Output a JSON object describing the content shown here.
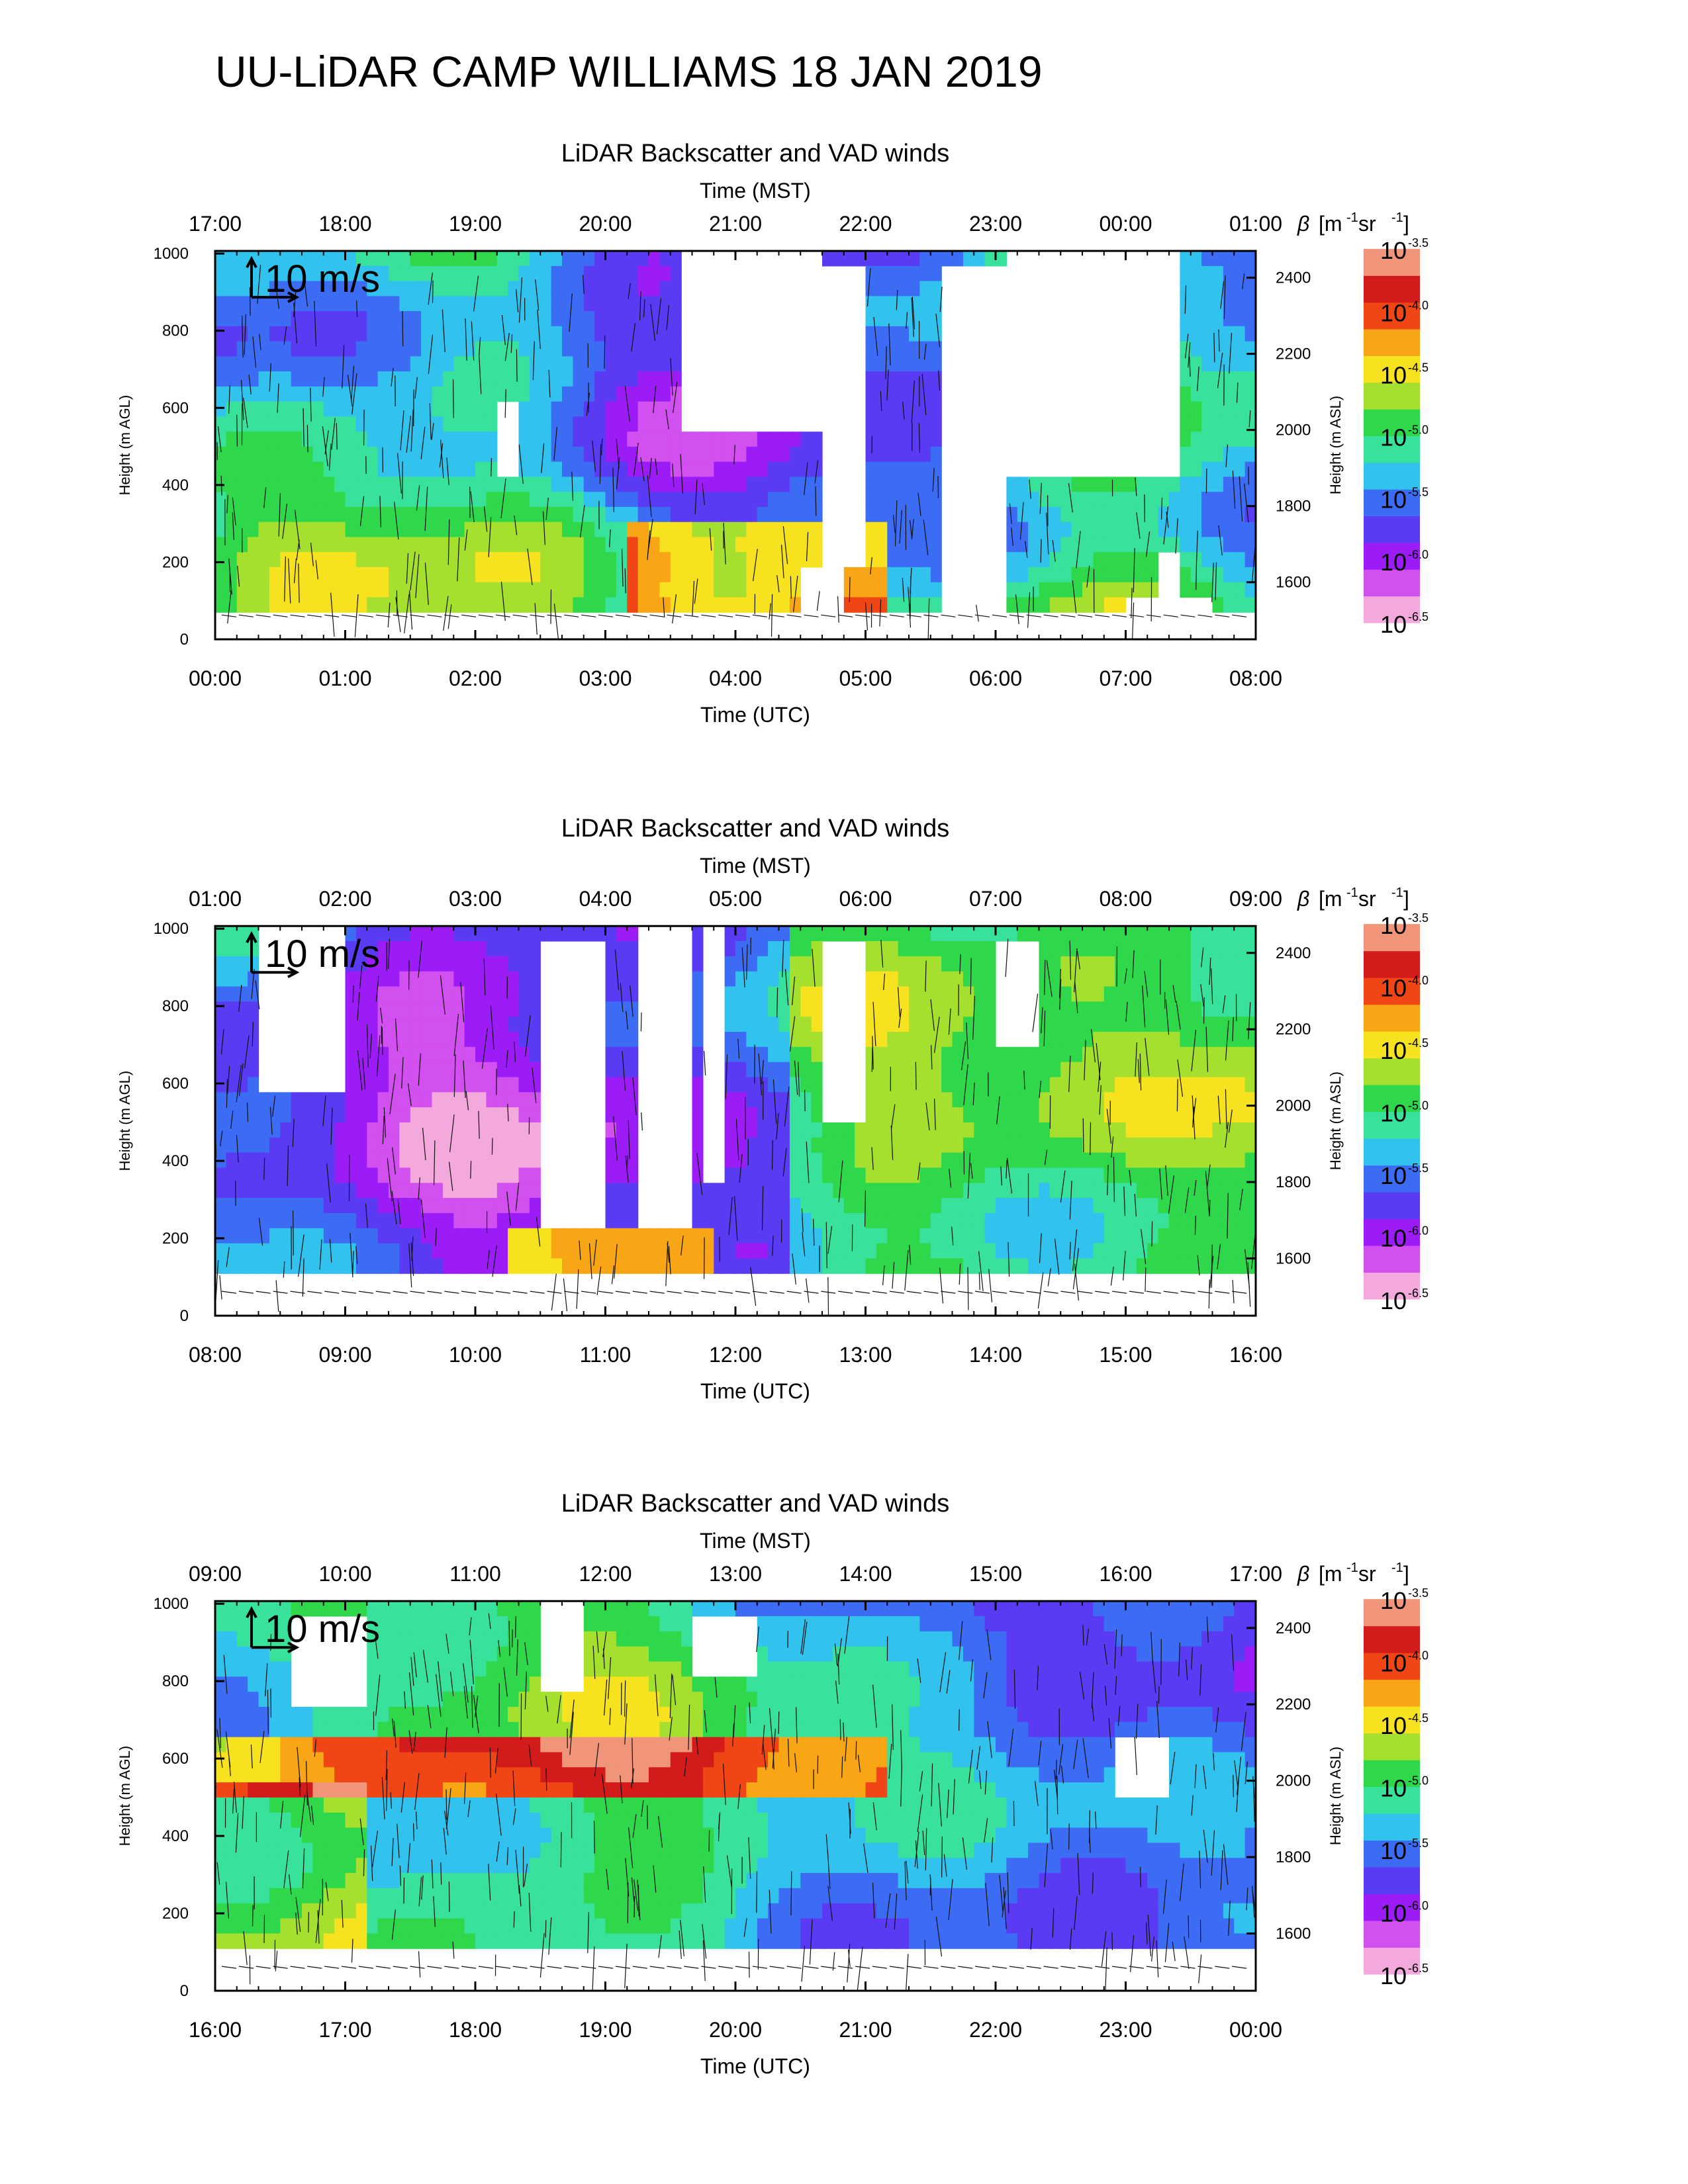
{
  "page": {
    "title": "UU-LiDAR CAMP WILLIAMS 18 JAN 2019"
  },
  "colors": {
    "palette": [
      "#f4a9dc",
      "#d24ff0",
      "#9b1cf7",
      "#5b3af4",
      "#3c6cf4",
      "#31c2ee",
      "#39e29b",
      "#2fd84a",
      "#a6e02f",
      "#f7e21f",
      "#f8a516",
      "#f04515",
      "#d31b1b",
      "#f0957a"
    ]
  },
  "colorbar": {
    "label_beta": "β",
    "label_units": "[m",
    "label_units_exp1": "-1",
    "label_units_mid": " sr",
    "label_units_exp2": "-1",
    "label_units_end": "]",
    "base": "10",
    "exponents": [
      "-3.5",
      "-4.0",
      "-4.5",
      "-5.0",
      "-5.5",
      "-6.0",
      "-6.5"
    ]
  },
  "chart_data": [
    {
      "type": "heatmap",
      "title": "LiDAR Backscatter and VAD winds",
      "top_axis_label": "Time (MST)",
      "top_ticks": [
        "17:00",
        "18:00",
        "19:00",
        "20:00",
        "21:00",
        "22:00",
        "23:00",
        "00:00",
        "01:00"
      ],
      "bottom_axis_label": "Time (UTC)",
      "bottom_ticks": [
        "00:00",
        "01:00",
        "02:00",
        "03:00",
        "04:00",
        "05:00",
        "06:00",
        "07:00",
        "08:00"
      ],
      "ylabel": "Height (m AGL)",
      "yticks": [
        "0",
        "200",
        "400",
        "600",
        "800",
        "1000"
      ],
      "ylim": [
        0,
        1000
      ],
      "ylabel_right": "Height (m ASL)",
      "yticks_right": [
        "1600",
        "1800",
        "2000",
        "2200",
        "2400"
      ],
      "ylim_right": [
        1450,
        2450
      ],
      "scale_label": "10 m/s",
      "colorbar_exponent_range": [
        -6.5,
        -3.5
      ]
    },
    {
      "type": "heatmap",
      "title": "LiDAR Backscatter and VAD winds",
      "top_axis_label": "Time (MST)",
      "top_ticks": [
        "01:00",
        "02:00",
        "03:00",
        "04:00",
        "05:00",
        "06:00",
        "07:00",
        "08:00",
        "09:00"
      ],
      "bottom_axis_label": "Time (UTC)",
      "bottom_ticks": [
        "08:00",
        "09:00",
        "10:00",
        "11:00",
        "12:00",
        "13:00",
        "14:00",
        "15:00",
        "16:00"
      ],
      "ylabel": "Height (m AGL)",
      "yticks": [
        "0",
        "200",
        "400",
        "600",
        "800",
        "1000"
      ],
      "ylim": [
        0,
        1000
      ],
      "ylabel_right": "Height (m ASL)",
      "yticks_right": [
        "1600",
        "1800",
        "2000",
        "2200",
        "2400"
      ],
      "ylim_right": [
        1450,
        2450
      ],
      "scale_label": "10 m/s",
      "colorbar_exponent_range": [
        -6.5,
        -3.5
      ]
    },
    {
      "type": "heatmap",
      "title": "LiDAR Backscatter and VAD winds",
      "top_axis_label": "Time (MST)",
      "top_ticks": [
        "09:00",
        "10:00",
        "11:00",
        "12:00",
        "13:00",
        "14:00",
        "15:00",
        "16:00",
        "17:00"
      ],
      "bottom_axis_label": "Time (UTC)",
      "bottom_ticks": [
        "16:00",
        "17:00",
        "18:00",
        "19:00",
        "20:00",
        "21:00",
        "22:00",
        "23:00",
        "00:00"
      ],
      "ylabel": "Height (m AGL)",
      "yticks": [
        "0",
        "200",
        "400",
        "600",
        "800",
        "1000"
      ],
      "ylim": [
        0,
        1000
      ],
      "ylabel_right": "Height (m ASL)",
      "yticks_right": [
        "1600",
        "1800",
        "2000",
        "2200",
        "2400"
      ],
      "ylim_right": [
        1450,
        2450
      ],
      "scale_label": "10 m/s",
      "colorbar_exponent_range": [
        -6.5,
        -3.5
      ]
    }
  ]
}
